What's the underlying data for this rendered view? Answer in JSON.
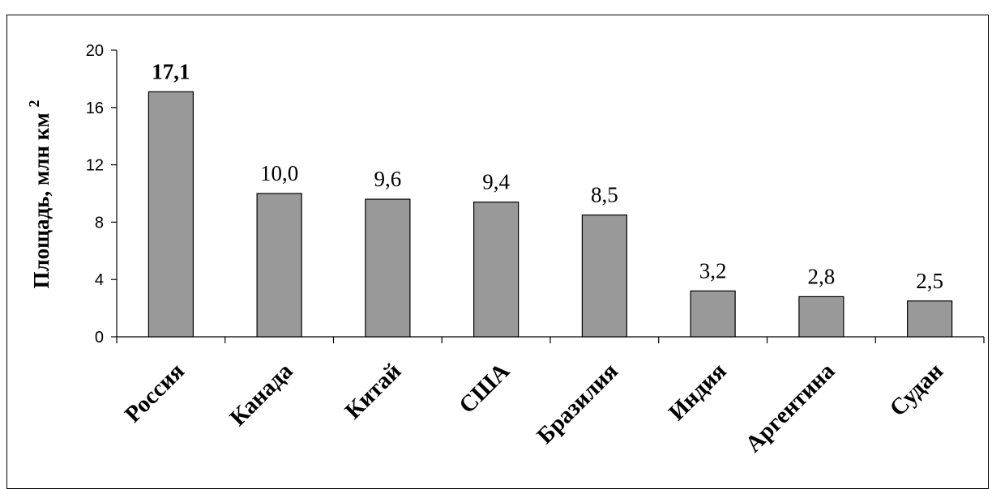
{
  "chart_data": {
    "type": "bar",
    "title": "",
    "xlabel": "",
    "ylabel": "Площадь, млн км",
    "ylabel_superscript": "2",
    "categories": [
      "Россия",
      "Канада",
      "Китай",
      "США",
      "Бразилия",
      "Индия",
      "Аргентина",
      "Судан"
    ],
    "values": [
      17.1,
      10.0,
      9.6,
      9.4,
      8.5,
      3.2,
      2.8,
      2.5
    ],
    "data_labels": [
      "17,1",
      "10,0",
      "9,6",
      "9,4",
      "8,5",
      "3,2",
      "2,8",
      "2,5"
    ],
    "ylim": [
      0,
      20
    ],
    "yticks": [
      0,
      4,
      8,
      12,
      16,
      20
    ],
    "ytick_labels": [
      "0",
      "4",
      "8",
      "12",
      "16",
      "20"
    ],
    "grid": false,
    "legend": "none",
    "bar_color": "#999999",
    "bar_edge_color": "#000000"
  }
}
